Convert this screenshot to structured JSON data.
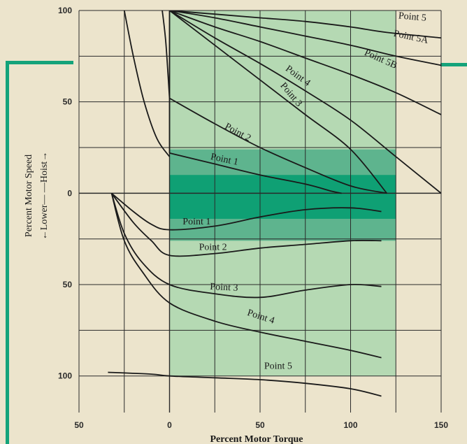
{
  "chart_data": {
    "type": "line",
    "xlabel": "Percent Motor Torque",
    "ylabel": "Percent Motor Speed",
    "ylabel_sub": "←Lower— —Hoist→",
    "x_tick_labels": [
      "50",
      "0",
      "50",
      "100",
      "150"
    ],
    "y_tick_labels": [
      "100",
      "50",
      "0",
      "50",
      "100"
    ],
    "xlim": [
      -50,
      150
    ],
    "ylim": [
      -120,
      100
    ],
    "x_gridlines": [
      -50,
      -25,
      0,
      25,
      50,
      75,
      100,
      125,
      150
    ],
    "y_gridlines": [
      100,
      75,
      50,
      25,
      0,
      -25,
      -50,
      -75,
      -100
    ],
    "grid": true,
    "colors": {
      "background": "#ece4cc",
      "light_band": "#b5d9b3",
      "medium_band": "#5eb48e",
      "dark_band": "#0fa074",
      "border_accent": "#14a37a",
      "grid": "#2a2a2a",
      "curve": "#1a1a1a"
    },
    "shaded_regions": [
      {
        "level": "light",
        "x": [
          0,
          125
        ],
        "y": [
          -100,
          100
        ]
      },
      {
        "level": "medium",
        "x": [
          0,
          125
        ],
        "y": [
          -26,
          24
        ]
      },
      {
        "level": "dark",
        "x": [
          0,
          125
        ],
        "y": [
          -14,
          10
        ]
      }
    ],
    "series": [
      {
        "name": "Point 5",
        "points": [
          [
            0,
            100
          ],
          [
            25,
            98
          ],
          [
            50,
            96
          ],
          [
            75,
            94
          ],
          [
            100,
            91
          ],
          [
            120,
            88
          ],
          [
            150,
            85
          ]
        ]
      },
      {
        "name": "Point 5A",
        "points": [
          [
            0,
            100
          ],
          [
            25,
            96
          ],
          [
            50,
            91
          ],
          [
            75,
            86
          ],
          [
            100,
            81
          ],
          [
            125,
            75
          ],
          [
            150,
            70
          ]
        ]
      },
      {
        "name": "Point 5B",
        "points": [
          [
            0,
            100
          ],
          [
            25,
            91
          ],
          [
            50,
            83
          ],
          [
            75,
            74
          ],
          [
            100,
            65
          ],
          [
            125,
            55
          ],
          [
            150,
            43
          ]
        ]
      },
      {
        "name": "Point 4",
        "points": [
          [
            0,
            100
          ],
          [
            25,
            85
          ],
          [
            50,
            71
          ],
          [
            75,
            56
          ],
          [
            100,
            40
          ],
          [
            125,
            20
          ],
          [
            150,
            0
          ]
        ]
      },
      {
        "name": "Point 3",
        "points": [
          [
            0,
            100
          ],
          [
            25,
            81
          ],
          [
            50,
            62
          ],
          [
            75,
            43
          ],
          [
            100,
            24
          ],
          [
            120,
            0
          ]
        ]
      },
      {
        "name": "Point 2",
        "points": [
          [
            0,
            52
          ],
          [
            25,
            38
          ],
          [
            50,
            25
          ],
          [
            75,
            14
          ],
          [
            100,
            4
          ],
          [
            120,
            0
          ]
        ]
      },
      {
        "name": "Point 1",
        "points": [
          [
            0,
            22
          ],
          [
            25,
            16
          ],
          [
            50,
            10
          ],
          [
            75,
            5
          ],
          [
            90,
            1
          ],
          [
            95,
            0
          ]
        ]
      },
      {
        "name": "Point 1",
        "points": [
          [
            -32,
            0
          ],
          [
            -20,
            -10
          ],
          [
            -10,
            -17
          ],
          [
            0,
            -20
          ],
          [
            25,
            -18
          ],
          [
            50,
            -13
          ],
          [
            75,
            -9
          ],
          [
            100,
            -8
          ],
          [
            117,
            -10
          ]
        ]
      },
      {
        "name": "Point 2",
        "points": [
          [
            -32,
            0
          ],
          [
            -20,
            -16
          ],
          [
            -10,
            -26
          ],
          [
            0,
            -34
          ],
          [
            25,
            -33
          ],
          [
            50,
            -30
          ],
          [
            75,
            -28
          ],
          [
            100,
            -26
          ],
          [
            117,
            -26
          ]
        ]
      },
      {
        "name": "Point 3",
        "points": [
          [
            -32,
            0
          ],
          [
            -25,
            -22
          ],
          [
            -15,
            -38
          ],
          [
            0,
            -50
          ],
          [
            25,
            -55
          ],
          [
            50,
            -57
          ],
          [
            75,
            -53
          ],
          [
            100,
            -50
          ],
          [
            117,
            -51
          ]
        ]
      },
      {
        "name": "Point 4",
        "points": [
          [
            -32,
            0
          ],
          [
            -25,
            -26
          ],
          [
            -15,
            -43
          ],
          [
            0,
            -60
          ],
          [
            25,
            -70
          ],
          [
            50,
            -76
          ],
          [
            75,
            -81
          ],
          [
            100,
            -86
          ],
          [
            117,
            -90
          ]
        ]
      },
      {
        "name": "Point 5",
        "points": [
          [
            -34,
            -98
          ],
          [
            -10,
            -99
          ],
          [
            0,
            -100
          ],
          [
            25,
            -101
          ],
          [
            50,
            -102
          ],
          [
            75,
            -104
          ],
          [
            100,
            -107
          ],
          [
            117,
            -111
          ]
        ]
      },
      {
        "name": "",
        "points": [
          [
            -25,
            100
          ],
          [
            -20,
            75
          ],
          [
            -14,
            50
          ],
          [
            -7,
            30
          ],
          [
            0,
            20
          ]
        ]
      },
      {
        "name": "",
        "points": [
          [
            -4,
            100
          ],
          [
            -2,
            82
          ],
          [
            0,
            52
          ]
        ]
      },
      {
        "name": "",
        "points": [
          [
            0,
            100
          ],
          [
            0,
            22
          ]
        ]
      }
    ],
    "annotations": [
      {
        "text": "Point 5",
        "x": 134,
        "y": 95,
        "angle": 5
      },
      {
        "text": "Point 5A",
        "x": 133,
        "y": 84,
        "angle": 12
      },
      {
        "text": "Point 5B",
        "x": 116,
        "y": 72,
        "angle": 24
      },
      {
        "text": "Point 4",
        "x": 70,
        "y": 63,
        "angle": 36
      },
      {
        "text": "Point 3",
        "x": 66,
        "y": 53,
        "angle": 50
      },
      {
        "text": "Point 2",
        "x": 37,
        "y": 32,
        "angle": 28
      },
      {
        "text": "Point 1",
        "x": 30,
        "y": 17,
        "angle": 12
      },
      {
        "text": "Point 1",
        "x": 15,
        "y": -17,
        "angle": 0
      },
      {
        "text": "Point 2",
        "x": 24,
        "y": -31,
        "angle": 0
      },
      {
        "text": "Point 3",
        "x": 30,
        "y": -53,
        "angle": 3
      },
      {
        "text": "Point 4",
        "x": 50,
        "y": -69,
        "angle": 18
      },
      {
        "text": "Point 5",
        "x": 60,
        "y": -96,
        "angle": 0
      }
    ]
  }
}
